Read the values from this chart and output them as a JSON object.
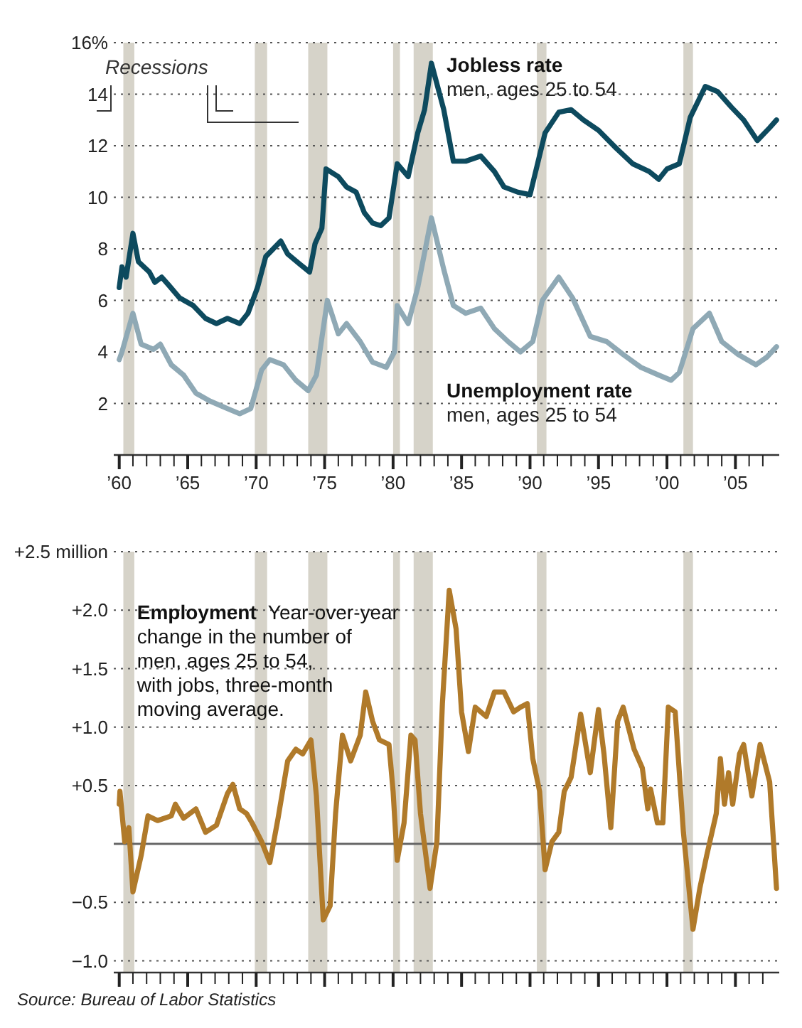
{
  "chart_data": [
    {
      "type": "line",
      "ylim": [
        0,
        16
      ],
      "yticks": [
        2,
        4,
        6,
        8,
        10,
        12,
        14,
        {
          "value": 16,
          "label": "16%"
        }
      ],
      "xlim": [
        1959.6,
        2008.2
      ],
      "xticks": [
        {
          "value": 1960,
          "label": "’60"
        },
        {
          "value": 1961,
          "label": null
        },
        {
          "value": 1962,
          "label": null
        },
        {
          "value": 1963,
          "label": null
        },
        {
          "value": 1964,
          "label": null
        },
        {
          "value": 1965,
          "label": "’65"
        },
        {
          "value": 1966,
          "label": null
        },
        {
          "value": 1967,
          "label": null
        },
        {
          "value": 1968,
          "label": null
        },
        {
          "value": 1969,
          "label": null
        },
        {
          "value": 1970,
          "label": "’70"
        },
        {
          "value": 1971,
          "label": null
        },
        {
          "value": 1972,
          "label": null
        },
        {
          "value": 1973,
          "label": null
        },
        {
          "value": 1974,
          "label": null
        },
        {
          "value": 1975,
          "label": "’75"
        },
        {
          "value": 1976,
          "label": null
        },
        {
          "value": 1977,
          "label": null
        },
        {
          "value": 1978,
          "label": null
        },
        {
          "value": 1979,
          "label": null
        },
        {
          "value": 1980,
          "label": "’80"
        },
        {
          "value": 1981,
          "label": null
        },
        {
          "value": 1982,
          "label": null
        },
        {
          "value": 1983,
          "label": null
        },
        {
          "value": 1984,
          "label": null
        },
        {
          "value": 1985,
          "label": "’85"
        },
        {
          "value": 1986,
          "label": null
        },
        {
          "value": 1987,
          "label": null
        },
        {
          "value": 1988,
          "label": null
        },
        {
          "value": 1989,
          "label": null
        },
        {
          "value": 1990,
          "label": "’90"
        },
        {
          "value": 1991,
          "label": null
        },
        {
          "value": 1992,
          "label": null
        },
        {
          "value": 1993,
          "label": null
        },
        {
          "value": 1994,
          "label": null
        },
        {
          "value": 1995,
          "label": "’95"
        },
        {
          "value": 1996,
          "label": null
        },
        {
          "value": 1997,
          "label": null
        },
        {
          "value": 1998,
          "label": null
        },
        {
          "value": 1999,
          "label": null
        },
        {
          "value": 2000,
          "label": "’00"
        },
        {
          "value": 2001,
          "label": null
        },
        {
          "value": 2002,
          "label": null
        },
        {
          "value": 2003,
          "label": null
        },
        {
          "value": 2004,
          "label": null
        },
        {
          "value": 2005,
          "label": "’05"
        },
        {
          "value": 2006,
          "label": null
        },
        {
          "value": 2007,
          "label": null
        }
      ],
      "grid": "y",
      "bands": [
        {
          "axis": "x",
          "from": 1960.3,
          "to": 1961.1,
          "color": "#d6d3c9"
        },
        {
          "axis": "x",
          "from": 1969.9,
          "to": 1970.8,
          "color": "#d6d3c9"
        },
        {
          "axis": "x",
          "from": 1973.8,
          "to": 1975.2,
          "color": "#d6d3c9"
        },
        {
          "axis": "x",
          "from": 1980.0,
          "to": 1980.5,
          "color": "#d6d3c9"
        },
        {
          "axis": "x",
          "from": 1981.5,
          "to": 1982.9,
          "color": "#d6d3c9"
        },
        {
          "axis": "x",
          "from": 1990.5,
          "to": 1991.2,
          "color": "#d6d3c9"
        },
        {
          "axis": "x",
          "from": 2001.2,
          "to": 2001.9,
          "color": "#d6d3c9"
        }
      ],
      "annotations": [
        "men, ages 25 to 54",
        "men, ages 25 to 54",
        "Recessions"
      ],
      "series": [
        {
          "name": "Jobless rate",
          "color": "#0d4a5e",
          "x": [
            1960.0,
            1960.2,
            1960.5,
            1961.0,
            1961.4,
            1962.2,
            1962.6,
            1963.1,
            1963.6,
            1964.4,
            1965.4,
            1966.3,
            1967.1,
            1967.9,
            1968.8,
            1969.4,
            1970.1,
            1970.7,
            1971.8,
            1972.3,
            1973.2,
            1973.9,
            1974.3,
            1974.8,
            1975.1,
            1976.0,
            1976.6,
            1977.3,
            1977.9,
            1978.5,
            1979.1,
            1979.7,
            1980.3,
            1981.1,
            1981.8,
            1982.3,
            1982.8,
            1983.7,
            1984.4,
            1985.3,
            1986.4,
            1987.4,
            1988.1,
            1989.1,
            1990.0,
            1991.1,
            1992.1,
            1993.0,
            1993.9,
            1995.0,
            1996.3,
            1997.5,
            1998.7,
            1999.4,
            2000.0,
            2000.9,
            2001.7,
            2002.8,
            2003.7,
            2004.7,
            2005.6,
            2006.6,
            2007.5,
            2008.0
          ],
          "values": [
            6.5,
            7.3,
            6.9,
            8.6,
            7.5,
            7.1,
            6.7,
            6.9,
            6.6,
            6.1,
            5.8,
            5.3,
            5.1,
            5.3,
            5.1,
            5.5,
            6.5,
            7.7,
            8.3,
            7.8,
            7.4,
            7.1,
            8.2,
            8.8,
            11.1,
            10.8,
            10.4,
            10.2,
            9.4,
            9.0,
            8.9,
            9.2,
            11.3,
            10.8,
            12.5,
            13.4,
            15.2,
            13.4,
            11.4,
            11.4,
            11.6,
            11.0,
            10.4,
            10.2,
            10.1,
            12.5,
            13.3,
            13.4,
            13.0,
            12.6,
            11.9,
            11.3,
            11.0,
            10.7,
            11.1,
            11.3,
            13.1,
            14.3,
            14.1,
            13.5,
            13.0,
            12.2,
            12.7,
            13.0
          ]
        },
        {
          "name": "Unemployment rate",
          "color": "#8fa9b5",
          "x": [
            1960.0,
            1960.2,
            1961.0,
            1961.6,
            1962.5,
            1963.0,
            1963.8,
            1964.7,
            1965.6,
            1966.6,
            1967.9,
            1968.8,
            1969.6,
            1970.4,
            1971.0,
            1972.0,
            1972.9,
            1973.8,
            1974.4,
            1975.2,
            1976.0,
            1976.6,
            1977.6,
            1978.5,
            1979.5,
            1980.1,
            1980.3,
            1981.1,
            1981.8,
            1982.8,
            1983.7,
            1984.4,
            1985.3,
            1986.4,
            1987.4,
            1988.4,
            1989.3,
            1990.2,
            1990.9,
            1992.1,
            1993.1,
            1994.4,
            1995.6,
            1996.8,
            1998.1,
            1999.4,
            2000.3,
            2000.9,
            2001.9,
            2003.1,
            2004.0,
            2005.2,
            2006.5,
            2007.3,
            2008.0
          ],
          "values": [
            3.7,
            4.0,
            5.5,
            4.3,
            4.1,
            4.3,
            3.5,
            3.1,
            2.4,
            2.1,
            1.8,
            1.6,
            1.8,
            3.3,
            3.7,
            3.5,
            2.9,
            2.5,
            3.1,
            6.0,
            4.7,
            5.1,
            4.4,
            3.6,
            3.4,
            4.0,
            5.8,
            5.1,
            6.5,
            9.2,
            7.2,
            5.8,
            5.5,
            5.7,
            4.9,
            4.4,
            4.0,
            4.4,
            6.0,
            6.9,
            6.1,
            4.6,
            4.4,
            3.9,
            3.4,
            3.1,
            2.9,
            3.2,
            4.9,
            5.5,
            4.4,
            3.9,
            3.5,
            3.8,
            4.2
          ]
        }
      ]
    },
    {
      "type": "line",
      "title": "Employment",
      "subtitle": "Year-over-year change in the number of men, ages 25 to 54, with jobs, three-month moving average.",
      "ylim": [
        -1.1,
        2.5
      ],
      "yticks": [
        {
          "value": 2.5,
          "label": "+2.5 million"
        },
        {
          "value": 2,
          "label": "+2.0"
        },
        {
          "value": 1.5,
          "label": "+1.5"
        },
        {
          "value": 1,
          "label": "+1.0"
        },
        {
          "value": 0.5,
          "label": "+0.5"
        },
        {
          "value": -0.5,
          "label": "−0.5"
        },
        {
          "value": -1,
          "label": "−1.0"
        }
      ],
      "xlim": [
        1959.6,
        2008.2
      ],
      "xticks": [
        {
          "value": 1960,
          "label": null
        },
        {
          "value": 1961,
          "label": null
        },
        {
          "value": 1962,
          "label": null
        },
        {
          "value": 1963,
          "label": null
        },
        {
          "value": 1964,
          "label": null
        },
        {
          "value": 1965,
          "label": null
        },
        {
          "value": 1966,
          "label": null
        },
        {
          "value": 1967,
          "label": null
        },
        {
          "value": 1968,
          "label": null
        },
        {
          "value": 1969,
          "label": null
        },
        {
          "value": 1970,
          "label": null
        },
        {
          "value": 1971,
          "label": null
        },
        {
          "value": 1972,
          "label": null
        },
        {
          "value": 1973,
          "label": null
        },
        {
          "value": 1974,
          "label": null
        },
        {
          "value": 1975,
          "label": null
        },
        {
          "value": 1976,
          "label": null
        },
        {
          "value": 1977,
          "label": null
        },
        {
          "value": 1978,
          "label": null
        },
        {
          "value": 1979,
          "label": null
        },
        {
          "value": 1980,
          "label": null
        },
        {
          "value": 1981,
          "label": null
        },
        {
          "value": 1982,
          "label": null
        },
        {
          "value": 1983,
          "label": null
        },
        {
          "value": 1984,
          "label": null
        },
        {
          "value": 1985,
          "label": null
        },
        {
          "value": 1986,
          "label": null
        },
        {
          "value": 1987,
          "label": null
        },
        {
          "value": 1988,
          "label": null
        },
        {
          "value": 1989,
          "label": null
        },
        {
          "value": 1990,
          "label": null
        },
        {
          "value": 1991,
          "label": null
        },
        {
          "value": 1992,
          "label": null
        },
        {
          "value": 1993,
          "label": null
        },
        {
          "value": 1994,
          "label": null
        },
        {
          "value": 1995,
          "label": null
        },
        {
          "value": 1996,
          "label": null
        },
        {
          "value": 1997,
          "label": null
        },
        {
          "value": 1998,
          "label": null
        },
        {
          "value": 1999,
          "label": null
        },
        {
          "value": 2000,
          "label": null
        },
        {
          "value": 2001,
          "label": null
        },
        {
          "value": 2002,
          "label": null
        },
        {
          "value": 2003,
          "label": null
        },
        {
          "value": 2004,
          "label": null
        },
        {
          "value": 2005,
          "label": null
        },
        {
          "value": 2006,
          "label": null
        },
        {
          "value": 2007,
          "label": null
        }
      ],
      "tick_labels": "y",
      "grid": "y",
      "ref_lines": [
        {
          "axis": "y",
          "value": 0,
          "color": "#666666",
          "line_style": "solid"
        }
      ],
      "bands": [
        {
          "axis": "x",
          "from": 1960.3,
          "to": 1961.1,
          "color": "#d6d3c9"
        },
        {
          "axis": "x",
          "from": 1969.9,
          "to": 1970.8,
          "color": "#d6d3c9"
        },
        {
          "axis": "x",
          "from": 1973.8,
          "to": 1975.2,
          "color": "#d6d3c9"
        },
        {
          "axis": "x",
          "from": 1980.0,
          "to": 1980.5,
          "color": "#d6d3c9"
        },
        {
          "axis": "x",
          "from": 1981.5,
          "to": 1982.9,
          "color": "#d6d3c9"
        },
        {
          "axis": "x",
          "from": 1990.5,
          "to": 1991.2,
          "color": "#d6d3c9"
        },
        {
          "axis": "x",
          "from": 2001.2,
          "to": 2001.9,
          "color": "#d6d3c9"
        }
      ],
      "annotations": [
        "Source: Bureau of Labor Statistics"
      ],
      "series": [
        {
          "color": "#b07a2a",
          "x": [
            1960.0,
            1960.05,
            1960.4,
            1960.7,
            1961.0,
            1961.6,
            1962.1,
            1962.8,
            1963.8,
            1964.1,
            1964.7,
            1965.6,
            1966.3,
            1967.1,
            1967.9,
            1968.3,
            1968.8,
            1969.3,
            1969.7,
            1970.4,
            1971.0,
            1971.6,
            1972.3,
            1972.9,
            1973.4,
            1974.0,
            1974.4,
            1974.9,
            1975.4,
            1975.8,
            1976.3,
            1976.9,
            1977.6,
            1978.0,
            1978.5,
            1979.0,
            1979.7,
            1980.0,
            1980.3,
            1980.8,
            1981.3,
            1981.6,
            1982.0,
            1982.7,
            1983.2,
            1983.6,
            1984.1,
            1984.6,
            1985.0,
            1985.5,
            1986.0,
            1986.8,
            1987.4,
            1988.1,
            1988.8,
            1989.3,
            1989.8,
            1990.2,
            1990.7,
            1991.1,
            1991.6,
            1992.1,
            1992.5,
            1993.0,
            1993.7,
            1994.4,
            1995.0,
            1995.4,
            1995.9,
            1996.4,
            1996.8,
            1997.6,
            1998.2,
            1998.6,
            1998.8,
            1999.3,
            1999.7,
            2000.1,
            2000.6,
            2001.2,
            2001.9,
            2002.4,
            2002.9,
            2003.6,
            2003.9,
            2004.2,
            2004.5,
            2004.8,
            2005.3,
            2005.6,
            2006.2,
            2006.8,
            2007.5,
            2008.0
          ],
          "values": [
            0.34,
            0.45,
            0.02,
            0.14,
            -0.41,
            -0.1,
            0.24,
            0.2,
            0.24,
            0.34,
            0.22,
            0.3,
            0.1,
            0.16,
            0.43,
            0.51,
            0.3,
            0.26,
            0.18,
            0.02,
            -0.16,
            0.22,
            0.71,
            0.81,
            0.77,
            0.89,
            0.41,
            -0.65,
            -0.53,
            0.26,
            0.93,
            0.71,
            0.93,
            1.3,
            1.05,
            0.89,
            0.85,
            0.45,
            -0.14,
            0.18,
            0.93,
            0.89,
            0.26,
            -0.38,
            0.02,
            1.2,
            2.17,
            1.84,
            1.13,
            0.79,
            1.17,
            1.09,
            1.3,
            1.3,
            1.13,
            1.17,
            1.2,
            0.73,
            0.45,
            -0.22,
            0.02,
            0.1,
            0.45,
            0.57,
            1.11,
            0.61,
            1.15,
            0.77,
            0.14,
            1.05,
            1.17,
            0.81,
            0.65,
            0.3,
            0.47,
            0.18,
            0.18,
            1.17,
            1.13,
            0.1,
            -0.73,
            -0.38,
            -0.1,
            0.26,
            0.73,
            0.34,
            0.61,
            0.34,
            0.77,
            0.85,
            0.41,
            0.85,
            0.53,
            -0.38
          ]
        }
      ]
    }
  ]
}
